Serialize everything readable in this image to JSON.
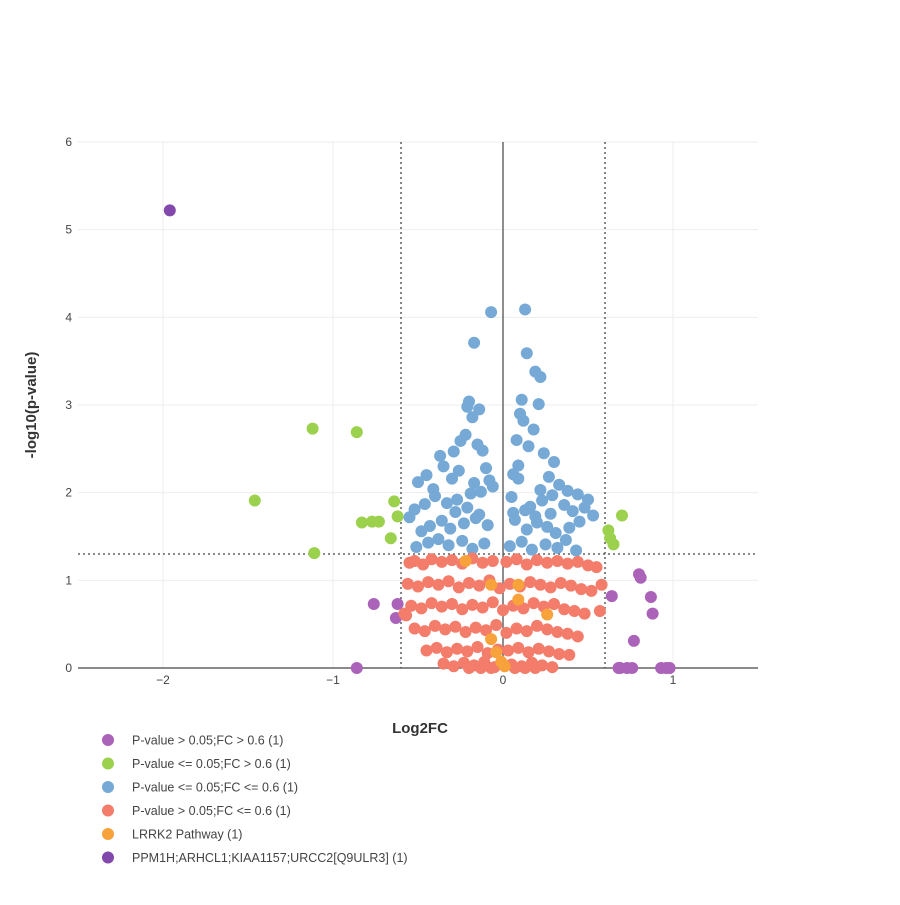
{
  "chart_data": {
    "type": "scatter",
    "title": "",
    "xlabel": "Log2FC",
    "ylabel": "-log10(p-value)",
    "xlim": [
      -2.5,
      1.5
    ],
    "ylim": [
      0,
      6
    ],
    "x_ticks": [
      -2,
      -1,
      0,
      1
    ],
    "x_tick_labels": [
      "−2",
      "−1",
      "0",
      "1"
    ],
    "y_ticks": [
      0,
      1,
      2,
      3,
      4,
      5,
      6
    ],
    "y_tick_labels": [
      "0",
      "1",
      "2",
      "3",
      "4",
      "5",
      "6"
    ],
    "grid": true,
    "legend_position": "bottom-left",
    "threshold_lines": {
      "log2fc": [
        -0.6,
        0.6
      ],
      "neg_log10_p": 1.3
    },
    "series": [
      {
        "name": "P-value > 0.05;FC > 0.6 (1)",
        "color": "#ab63b9",
        "x": [
          -0.86,
          -0.76,
          -0.62,
          -0.63,
          0.64,
          0.69,
          0.73,
          0.8,
          0.81,
          0.87,
          0.88,
          0.77,
          0.68,
          0.76,
          0.93,
          0.96,
          0.98
        ],
        "y": [
          0.0,
          0.73,
          0.73,
          0.57,
          0.82,
          0.0,
          0.0,
          1.07,
          1.03,
          0.81,
          0.62,
          0.31,
          0.0,
          0.0,
          0.0,
          0.0,
          0.0
        ]
      },
      {
        "name": "P-value <= 0.05;FC > 0.6 (1)",
        "color": "#9cd14e",
        "x": [
          -1.12,
          -0.86,
          -1.46,
          -1.11,
          -0.83,
          -0.77,
          -0.73,
          -0.64,
          -0.62,
          -0.66,
          0.62,
          0.63,
          0.65,
          0.7
        ],
        "y": [
          2.73,
          2.69,
          1.91,
          1.31,
          1.66,
          1.67,
          1.67,
          1.9,
          1.73,
          1.48,
          1.57,
          1.48,
          1.41,
          1.74
        ]
      },
      {
        "name": "P-value <= 0.05;FC <= 0.6 (1)",
        "color": "#76a9d6",
        "x": [
          -0.07,
          0.13,
          -0.17,
          0.14,
          0.19,
          0.22,
          -0.2,
          0.11,
          -0.21,
          -0.14,
          -0.18,
          0.1,
          0.21,
          0.12,
          0.18,
          -0.37,
          -0.35,
          -0.29,
          -0.25,
          -0.22,
          -0.15,
          -0.12,
          0.08,
          0.15,
          0.24,
          0.3,
          -0.45,
          -0.5,
          -0.41,
          -0.3,
          -0.26,
          -0.1,
          -0.08,
          0.06,
          0.09,
          0.27,
          0.33,
          0.38,
          0.44,
          0.5,
          -0.55,
          -0.52,
          -0.46,
          -0.4,
          -0.33,
          -0.27,
          -0.19,
          -0.13,
          0.05,
          0.16,
          0.23,
          0.29,
          0.36,
          0.41,
          0.48,
          0.53,
          -0.48,
          -0.43,
          -0.36,
          -0.31,
          -0.23,
          -0.16,
          -0.09,
          0.07,
          0.14,
          0.2,
          0.26,
          0.31,
          0.39,
          0.45,
          -0.51,
          -0.44,
          -0.38,
          -0.32,
          -0.24,
          -0.18,
          -0.11,
          0.04,
          0.11,
          0.17,
          0.25,
          0.32,
          0.37,
          0.43,
          -0.28,
          -0.21,
          -0.14,
          0.06,
          0.13,
          0.19,
          0.28,
          -0.17,
          -0.06,
          0.09,
          0.22
        ],
        "y": [
          4.06,
          4.09,
          3.71,
          3.59,
          3.38,
          3.32,
          3.04,
          3.06,
          2.98,
          2.95,
          2.86,
          2.9,
          3.01,
          2.82,
          2.72,
          2.42,
          2.3,
          2.47,
          2.59,
          2.66,
          2.55,
          2.48,
          2.6,
          2.53,
          2.45,
          2.35,
          2.2,
          2.12,
          2.04,
          2.16,
          2.25,
          2.28,
          2.14,
          2.21,
          2.31,
          2.18,
          2.09,
          2.02,
          1.98,
          1.92,
          1.72,
          1.81,
          1.87,
          1.96,
          1.88,
          1.92,
          1.99,
          2.01,
          1.95,
          1.84,
          1.91,
          1.97,
          1.86,
          1.79,
          1.83,
          1.74,
          1.56,
          1.62,
          1.68,
          1.59,
          1.65,
          1.71,
          1.63,
          1.69,
          1.58,
          1.66,
          1.61,
          1.54,
          1.6,
          1.67,
          1.38,
          1.43,
          1.47,
          1.4,
          1.45,
          1.36,
          1.42,
          1.39,
          1.44,
          1.35,
          1.41,
          1.37,
          1.46,
          1.34,
          1.78,
          1.83,
          1.75,
          1.77,
          1.8,
          1.73,
          1.76,
          2.11,
          2.07,
          2.16,
          2.03
        ]
      },
      {
        "name": "P-value > 0.05;FC <= 0.6 (1)",
        "color": "#f47c6a",
        "x": [
          -0.55,
          -0.52,
          -0.47,
          -0.42,
          -0.36,
          -0.3,
          -0.24,
          -0.18,
          -0.12,
          -0.06,
          0.02,
          0.08,
          0.14,
          0.2,
          0.26,
          0.32,
          0.38,
          0.44,
          0.5,
          0.55,
          -0.56,
          -0.5,
          -0.44,
          -0.38,
          -0.32,
          -0.26,
          -0.2,
          -0.14,
          -0.08,
          -0.02,
          0.04,
          0.1,
          0.16,
          0.22,
          0.28,
          0.34,
          0.4,
          0.46,
          0.52,
          -0.54,
          -0.48,
          -0.42,
          -0.36,
          -0.3,
          -0.24,
          -0.18,
          -0.12,
          -0.06,
          0.0,
          0.06,
          0.12,
          0.18,
          0.24,
          0.3,
          0.36,
          0.42,
          0.48,
          -0.52,
          -0.46,
          -0.4,
          -0.34,
          -0.28,
          -0.22,
          -0.16,
          -0.1,
          -0.04,
          0.02,
          0.08,
          0.14,
          0.2,
          0.26,
          0.32,
          0.38,
          0.44,
          -0.45,
          -0.39,
          -0.33,
          -0.27,
          -0.21,
          -0.15,
          -0.09,
          -0.03,
          0.03,
          0.09,
          0.15,
          0.21,
          0.27,
          0.33,
          0.39,
          -0.35,
          -0.29,
          -0.23,
          -0.17,
          -0.11,
          -0.05,
          0.05,
          0.11,
          0.17,
          0.23,
          0.29,
          -0.2,
          -0.13,
          -0.07,
          0.07,
          0.13,
          0.19,
          -0.58,
          0.57,
          -0.57,
          0.58
        ],
        "y": [
          1.2,
          1.22,
          1.18,
          1.24,
          1.21,
          1.23,
          1.19,
          1.25,
          1.2,
          1.22,
          1.21,
          1.24,
          1.18,
          1.23,
          1.2,
          1.22,
          1.19,
          1.21,
          1.17,
          1.15,
          0.96,
          0.93,
          0.98,
          0.95,
          0.99,
          0.92,
          0.97,
          0.94,
          1.0,
          0.91,
          0.96,
          0.93,
          0.98,
          0.95,
          0.92,
          0.97,
          0.94,
          0.9,
          0.88,
          0.71,
          0.68,
          0.74,
          0.7,
          0.73,
          0.67,
          0.72,
          0.69,
          0.75,
          0.66,
          0.71,
          0.68,
          0.74,
          0.7,
          0.73,
          0.67,
          0.65,
          0.62,
          0.45,
          0.42,
          0.48,
          0.44,
          0.47,
          0.41,
          0.46,
          0.43,
          0.49,
          0.4,
          0.45,
          0.42,
          0.48,
          0.44,
          0.41,
          0.39,
          0.36,
          0.2,
          0.23,
          0.18,
          0.22,
          0.19,
          0.24,
          0.17,
          0.21,
          0.2,
          0.23,
          0.18,
          0.22,
          0.19,
          0.16,
          0.15,
          0.05,
          0.02,
          0.06,
          0.03,
          0.07,
          0.01,
          0.04,
          0.02,
          0.06,
          0.03,
          0.01,
          0.0,
          0.0,
          0.0,
          0.0,
          0.0,
          0.0,
          0.62,
          0.65,
          0.6,
          0.95
        ]
      },
      {
        "name": "LRRK2 Pathway (1)",
        "color": "#f8a23b",
        "x": [
          -0.22,
          -0.07,
          0.09,
          0.09,
          0.26,
          -0.07,
          -0.04,
          -0.01,
          0.01
        ],
        "y": [
          1.22,
          0.95,
          0.95,
          0.78,
          0.61,
          0.33,
          0.18,
          0.07,
          0.02
        ]
      },
      {
        "name": "PPM1H;ARHCL1;KIAA1157;URCC2[Q9ULR3] (1)",
        "color": "#8249ad",
        "x": [
          -1.96
        ],
        "y": [
          5.22
        ]
      }
    ]
  }
}
